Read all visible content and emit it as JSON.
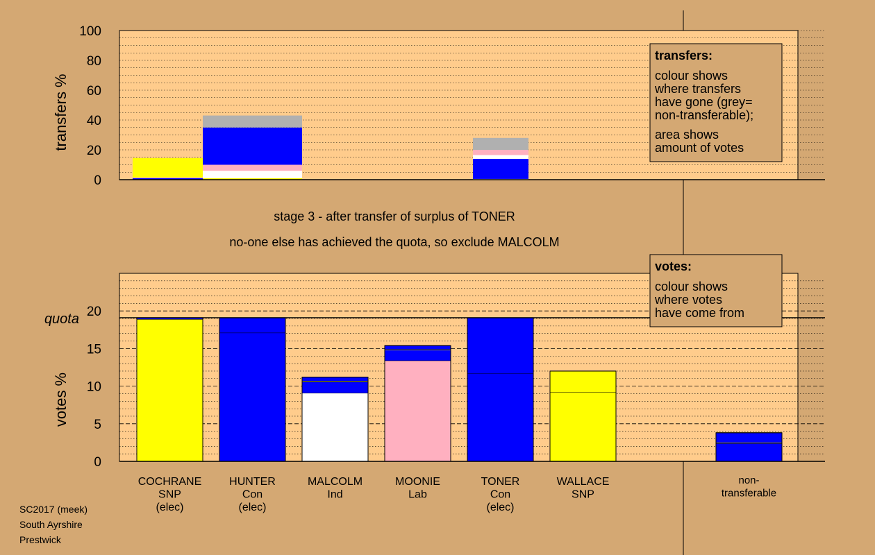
{
  "colors": {
    "background": "#d4a873",
    "plot_bg": "#ffcc8c",
    "SNP": "#ffff00",
    "Con": "#0000ff",
    "Ind": "#ffffff",
    "Lab": "#ffb0c0",
    "nontransferable": "#b0b0b0"
  },
  "headings": {
    "stage": "stage 3 - after transfer of surplus of TONER",
    "action": "no-one else has achieved the quota, so exclude MALCOLM"
  },
  "footer": {
    "line1": "SC2017 (meek)",
    "line2": "South Ayrshire",
    "line3": "Prestwick"
  },
  "chart_data": [
    {
      "type": "bar",
      "name": "transfers",
      "ylabel": "transfers %",
      "ylim": [
        0,
        100
      ],
      "yticks": [
        0,
        20,
        40,
        60,
        80,
        100
      ],
      "categories": [
        "COCHRANE",
        "HUNTER",
        "MALCOLM",
        "MOONIE",
        "TONER",
        "WALLACE",
        "non-transferable"
      ],
      "stacks": [
        [
          {
            "color": "Con",
            "value": 1
          },
          {
            "color": "Lab",
            "value": 0.5
          },
          {
            "color": "SNP",
            "value": 13
          }
        ],
        [
          {
            "color": "SNP",
            "value": 1
          },
          {
            "color": "Ind",
            "value": 5
          },
          {
            "color": "Lab",
            "value": 4
          },
          {
            "color": "Con",
            "value": 25
          },
          {
            "color": "nontransferable",
            "value": 8
          }
        ],
        [],
        [],
        [
          {
            "color": "Ind",
            "value": 0.5
          },
          {
            "color": "Con",
            "value": 13.5
          },
          {
            "color": "Ind",
            "value": 2.5
          },
          {
            "color": "Lab",
            "value": 3.5
          },
          {
            "color": "nontransferable",
            "value": 8
          }
        ],
        [],
        []
      ],
      "legend": {
        "title": "transfers:",
        "lines1": [
          "colour shows",
          "where transfers",
          "have gone (grey=",
          "non-transferable);"
        ],
        "lines2": [
          "area shows",
          "amount of votes"
        ]
      }
    },
    {
      "type": "bar",
      "name": "votes",
      "ylabel": "votes %",
      "ylim": [
        0,
        25
      ],
      "yticks": [
        0,
        5,
        10,
        15,
        20
      ],
      "quota": 19.1,
      "quota_label": "quota",
      "candidates": [
        {
          "name": "COCHRANE",
          "party": "SNP",
          "status": "(elec)",
          "segments": [
            {
              "color": "SNP",
              "value": 18.9
            },
            {
              "color": "Con",
              "value": 0.2
            }
          ]
        },
        {
          "name": "HUNTER",
          "party": "Con",
          "status": "(elec)",
          "segments": [
            {
              "color": "Con",
              "value": 17.1
            },
            {
              "color": "Con",
              "value": 2.0
            }
          ]
        },
        {
          "name": "MALCOLM",
          "party": "Ind",
          "status": "",
          "segments": [
            {
              "color": "Ind",
              "value": 9.1
            },
            {
              "color": "Con",
              "value": 1.5
            },
            {
              "color": "SNP",
              "value": 0.1
            },
            {
              "color": "Con",
              "value": 0.5
            }
          ]
        },
        {
          "name": "MOONIE",
          "party": "Lab",
          "status": "",
          "segments": [
            {
              "color": "Lab",
              "value": 13.4
            },
            {
              "color": "Con",
              "value": 1.4
            },
            {
              "color": "Ind",
              "value": 0.1
            },
            {
              "color": "Con",
              "value": 0.5
            }
          ]
        },
        {
          "name": "TONER",
          "party": "Con",
          "status": "(elec)",
          "segments": [
            {
              "color": "Con",
              "value": 11.7
            },
            {
              "color": "Con",
              "value": 7.4
            }
          ]
        },
        {
          "name": "WALLACE",
          "party": "SNP",
          "status": "",
          "segments": [
            {
              "color": "SNP",
              "value": 9.2
            },
            {
              "color": "SNP",
              "value": 2.8
            }
          ]
        },
        {
          "name": "non-",
          "party": "transferable",
          "status": "",
          "segments": [
            {
              "color": "Con",
              "value": 2.4
            },
            {
              "color": "SNP",
              "value": 0.1
            },
            {
              "color": "Con",
              "value": 1.3
            }
          ]
        }
      ],
      "legend": {
        "title": "votes:",
        "lines1": [
          "colour shows",
          "where votes",
          "have come from"
        ]
      }
    }
  ]
}
